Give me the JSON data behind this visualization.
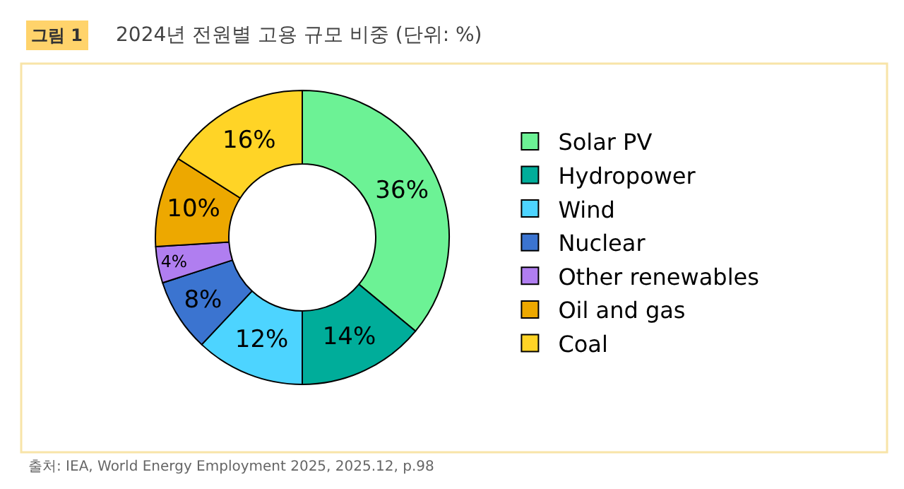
{
  "chart_data": {
    "type": "donut",
    "title": "2024년 전원별 고용 규모 비중 (단위: %)",
    "categories": [
      "Solar PV",
      "Hydropower",
      "Wind",
      "Nuclear",
      "Other renewables",
      "Oil and gas",
      "Coal"
    ],
    "values": [
      36,
      14,
      12,
      8,
      4,
      10,
      16
    ],
    "colors": [
      "#6cf295",
      "#00ad9a",
      "#4dd4ff",
      "#3b74d0",
      "#b07ef0",
      "#eda800",
      "#ffd426"
    ],
    "value_labels": [
      "36%",
      "14%",
      "12%",
      "8%",
      "4%",
      "10%",
      "16%"
    ],
    "legend": "right",
    "annotations": [
      "그림 1",
      "출처: IEA, World Energy Employment 2025, 2025.12, p.98"
    ]
  }
}
